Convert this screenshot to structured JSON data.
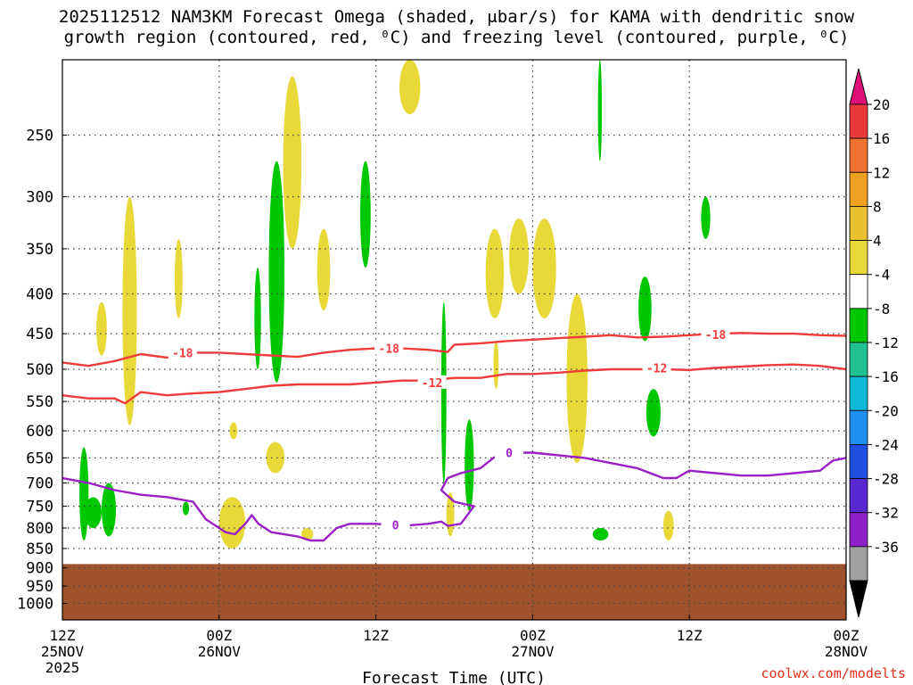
{
  "title": {
    "line1": "2025112512 NAM3KM Forecast Omega (shaded, μbar/s) for KAMA with dendritic snow",
    "line2": "growth region (contoured, red, ⁰C) and freezing level (contoured, purple, ⁰C)"
  },
  "credit": "coolwx.com/modelts",
  "chart_data": {
    "type": "heatmap",
    "xlabel": "Forecast Time (UTC)",
    "ylabel": "",
    "x_range_hours": [
      0,
      60
    ],
    "y_scale": "log-pressure",
    "y_range_hPa": [
      200,
      1050
    ],
    "y_ticks": [
      250,
      300,
      350,
      400,
      450,
      500,
      550,
      600,
      650,
      700,
      750,
      800,
      850,
      900,
      950,
      1000
    ],
    "x_ticks": [
      {
        "hour": 0,
        "lines": [
          "12Z",
          "25NOV",
          "2025"
        ]
      },
      {
        "hour": 12,
        "lines": [
          "00Z",
          "26NOV"
        ]
      },
      {
        "hour": 24,
        "lines": [
          "12Z"
        ]
      },
      {
        "hour": 36,
        "lines": [
          "00Z",
          "27NOV"
        ]
      },
      {
        "hour": 48,
        "lines": [
          "12Z"
        ]
      },
      {
        "hour": 60,
        "lines": [
          "00Z",
          "28NOV"
        ]
      }
    ],
    "grid": true,
    "colorbar": {
      "labels": [
        "20",
        "16",
        "12",
        "8",
        "4",
        "-4",
        "-8",
        "-12",
        "-16",
        "-20",
        "-24",
        "-28",
        "-32",
        "-36"
      ],
      "colors": [
        "#e83a3a",
        "#f07030",
        "#f0a020",
        "#e8c030",
        "#e8d838",
        "#ffffff",
        "#00c800",
        "#20c090",
        "#10b8d8",
        "#2090f0",
        "#1f4fe0",
        "#5a28d0",
        "#8f1fc8",
        "#a0a0a0"
      ],
      "top_color": "#e0107a",
      "bottom_color": "#000000"
    },
    "terrain": {
      "color": "#a0522d",
      "surface_hPa": 890
    },
    "shaded_regions": [
      {
        "color": "#e8d838",
        "x": [
          4.6,
          5.7
        ],
        "y": [
          300,
          590
        ]
      },
      {
        "color": "#e8d838",
        "x": [
          2.6,
          3.4
        ],
        "y": [
          410,
          480
        ]
      },
      {
        "color": "#e8d838",
        "x": [
          8.6,
          9.2
        ],
        "y": [
          340,
          430
        ]
      },
      {
        "color": "#e8d838",
        "x": [
          16.9,
          18.3
        ],
        "y": [
          210,
          350
        ]
      },
      {
        "color": "#e8d838",
        "x": [
          19.5,
          20.5
        ],
        "y": [
          330,
          420
        ]
      },
      {
        "color": "#e8d838",
        "x": [
          25.8,
          27.4
        ],
        "y": [
          200,
          235
        ]
      },
      {
        "color": "#e8d838",
        "x": [
          32.4,
          33.8
        ],
        "y": [
          330,
          430
        ]
      },
      {
        "color": "#e8d838",
        "x": [
          34.2,
          35.7
        ],
        "y": [
          320,
          400
        ]
      },
      {
        "color": "#e8d838",
        "x": [
          36.0,
          37.8
        ],
        "y": [
          320,
          430
        ]
      },
      {
        "color": "#e8d838",
        "x": [
          38.6,
          40.2
        ],
        "y": [
          400,
          660
        ]
      },
      {
        "color": "#e8d838",
        "x": [
          15.6,
          17.0
        ],
        "y": [
          620,
          680
        ]
      },
      {
        "color": "#e8d838",
        "x": [
          12.8,
          13.4
        ],
        "y": [
          585,
          615
        ]
      },
      {
        "color": "#e8d838",
        "x": [
          12.0,
          14.0
        ],
        "y": [
          730,
          850
        ]
      },
      {
        "color": "#e8d838",
        "x": [
          18.3,
          19.2
        ],
        "y": [
          800,
          830
        ]
      },
      {
        "color": "#e8d838",
        "x": [
          29.4,
          30.0
        ],
        "y": [
          720,
          820
        ]
      },
      {
        "color": "#e8d838",
        "x": [
          33.0,
          33.4
        ],
        "y": [
          460,
          530
        ]
      },
      {
        "color": "#e8d838",
        "x": [
          46.0,
          46.8
        ],
        "y": [
          760,
          830
        ]
      },
      {
        "color": "#00c800",
        "x": [
          1.3,
          2.0
        ],
        "y": [
          630,
          830
        ]
      },
      {
        "color": "#00c800",
        "x": [
          1.7,
          3.0
        ],
        "y": [
          730,
          800
        ]
      },
      {
        "color": "#00c800",
        "x": [
          3.0,
          4.1
        ],
        "y": [
          700,
          820
        ]
      },
      {
        "color": "#00c800",
        "x": [
          14.7,
          15.2
        ],
        "y": [
          370,
          500
        ]
      },
      {
        "color": "#00c800",
        "x": [
          15.8,
          17.0
        ],
        "y": [
          270,
          520
        ]
      },
      {
        "color": "#00c800",
        "x": [
          22.8,
          23.6
        ],
        "y": [
          270,
          370
        ]
      },
      {
        "color": "#00c800",
        "x": [
          29.0,
          29.4
        ],
        "y": [
          410,
          700
        ]
      },
      {
        "color": "#00c800",
        "x": [
          30.8,
          31.5
        ],
        "y": [
          580,
          760
        ]
      },
      {
        "color": "#00c800",
        "x": [
          44.1,
          45.1
        ],
        "y": [
          380,
          460
        ]
      },
      {
        "color": "#00c800",
        "x": [
          44.7,
          45.8
        ],
        "y": [
          530,
          610
        ]
      },
      {
        "color": "#00c800",
        "x": [
          41.0,
          41.3
        ],
        "y": [
          200,
          270
        ]
      },
      {
        "color": "#00c800",
        "x": [
          48.9,
          49.6
        ],
        "y": [
          300,
          340
        ]
      },
      {
        "color": "#00c800",
        "x": [
          40.6,
          41.8
        ],
        "y": [
          800,
          830
        ]
      },
      {
        "color": "#00c800",
        "x": [
          9.2,
          9.7
        ],
        "y": [
          740,
          770
        ]
      }
    ],
    "contours": [
      {
        "name": "-18",
        "color": "#ee3b3b",
        "x": [
          0,
          2,
          4,
          6,
          8,
          10,
          12,
          14,
          16,
          18,
          20,
          22,
          24,
          26,
          28,
          29.5,
          30,
          32,
          34,
          36,
          38,
          40,
          42,
          44,
          46,
          48,
          50,
          52,
          54,
          56,
          58,
          60
        ],
        "y": [
          490,
          495,
          488,
          478,
          483,
          476,
          476,
          478,
          480,
          482,
          476,
          472,
          470,
          470,
          472,
          475,
          465,
          463,
          460,
          458,
          456,
          454,
          452,
          455,
          454,
          452,
          450,
          449,
          450,
          450,
          452,
          453
        ],
        "labels": [
          {
            "x": 9.2,
            "y": 476
          },
          {
            "x": 25.0,
            "y": 470
          },
          {
            "x": 50.0,
            "y": 451
          }
        ]
      },
      {
        "name": "-12",
        "color": "#ee3b3b",
        "x": [
          0,
          2,
          4,
          4.8,
          6,
          8,
          10,
          12,
          14,
          16,
          18,
          20,
          22,
          24,
          26,
          28,
          30,
          32,
          34,
          36,
          38,
          40,
          42,
          44,
          46,
          48,
          50,
          52,
          54,
          56,
          58,
          60
        ],
        "y": [
          540,
          545,
          545,
          553,
          535,
          540,
          537,
          535,
          530,
          525,
          523,
          523,
          523,
          520,
          517,
          517,
          513,
          513,
          507,
          507,
          505,
          502,
          500,
          500,
          500,
          501,
          498,
          496,
          494,
          493,
          495,
          500
        ],
        "labels": [
          {
            "x": 28.3,
            "y": 520
          },
          {
            "x": 45.5,
            "y": 498
          }
        ]
      },
      {
        "name": "0",
        "color": "#9b1fc6",
        "x": [
          0,
          2,
          4,
          6,
          8,
          10,
          11,
          12,
          12.5,
          13.2,
          14,
          14.5,
          15,
          16,
          18,
          19,
          20,
          21,
          22,
          24,
          26,
          28,
          29,
          29.5,
          30.5,
          31,
          31.5,
          30,
          29,
          29.5,
          30.5,
          32,
          33,
          34,
          36,
          38,
          40,
          42,
          44,
          46,
          47,
          48,
          50,
          52,
          54,
          56,
          58,
          59,
          60
        ],
        "y": [
          690,
          700,
          715,
          725,
          730,
          740,
          780,
          800,
          810,
          815,
          790,
          770,
          790,
          810,
          820,
          830,
          830,
          800,
          790,
          790,
          795,
          790,
          785,
          795,
          790,
          770,
          750,
          740,
          715,
          690,
          680,
          670,
          650,
          640,
          640,
          645,
          650,
          660,
          670,
          690,
          690,
          675,
          680,
          685,
          685,
          680,
          675,
          655,
          650
        ],
        "labels": [
          {
            "x": 25.5,
            "y": 793
          },
          {
            "x": 34.2,
            "y": 640
          }
        ]
      }
    ]
  }
}
